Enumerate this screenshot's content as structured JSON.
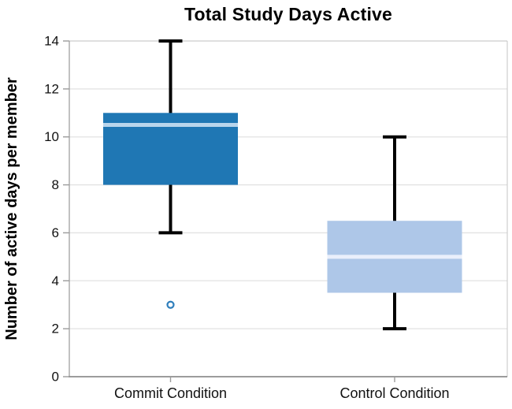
{
  "page": {
    "background": "#ffffff"
  },
  "chart_data": {
    "type": "boxplot",
    "title": "Total Study Days Active",
    "ylabel": "Number of active days per member",
    "xlabel": "",
    "ylim": [
      0,
      14
    ],
    "yticks": [
      0,
      2,
      4,
      6,
      8,
      10,
      12,
      14
    ],
    "grid": true,
    "legend": "none",
    "categories": [
      "Commit Condition",
      "Control Condition"
    ],
    "series": [
      {
        "name": "Commit Condition",
        "whisker_low": 6,
        "q1": 8,
        "median": 10.5,
        "q3": 11,
        "whisker_high": 14,
        "outliers": [
          3
        ],
        "box_color": "#1f77b4",
        "median_color": "#b9d5ec"
      },
      {
        "name": "Control Condition",
        "whisker_low": 2,
        "q1": 3.5,
        "median": 5,
        "q3": 6.5,
        "whisker_high": 10,
        "outliers": [],
        "box_color": "#aec7e8",
        "median_color": "#eaeffb"
      }
    ],
    "colors": {
      "whisker": "#000000",
      "grid": "#e2e2e2",
      "axis_left": "#a0a0a0",
      "axis_bottom": "#8e8e8e",
      "axis_border": "#c6c6c6",
      "tick": "#9b9b9b",
      "tick_label": "#111111",
      "outlier_stroke": "#2e7ebc"
    }
  }
}
